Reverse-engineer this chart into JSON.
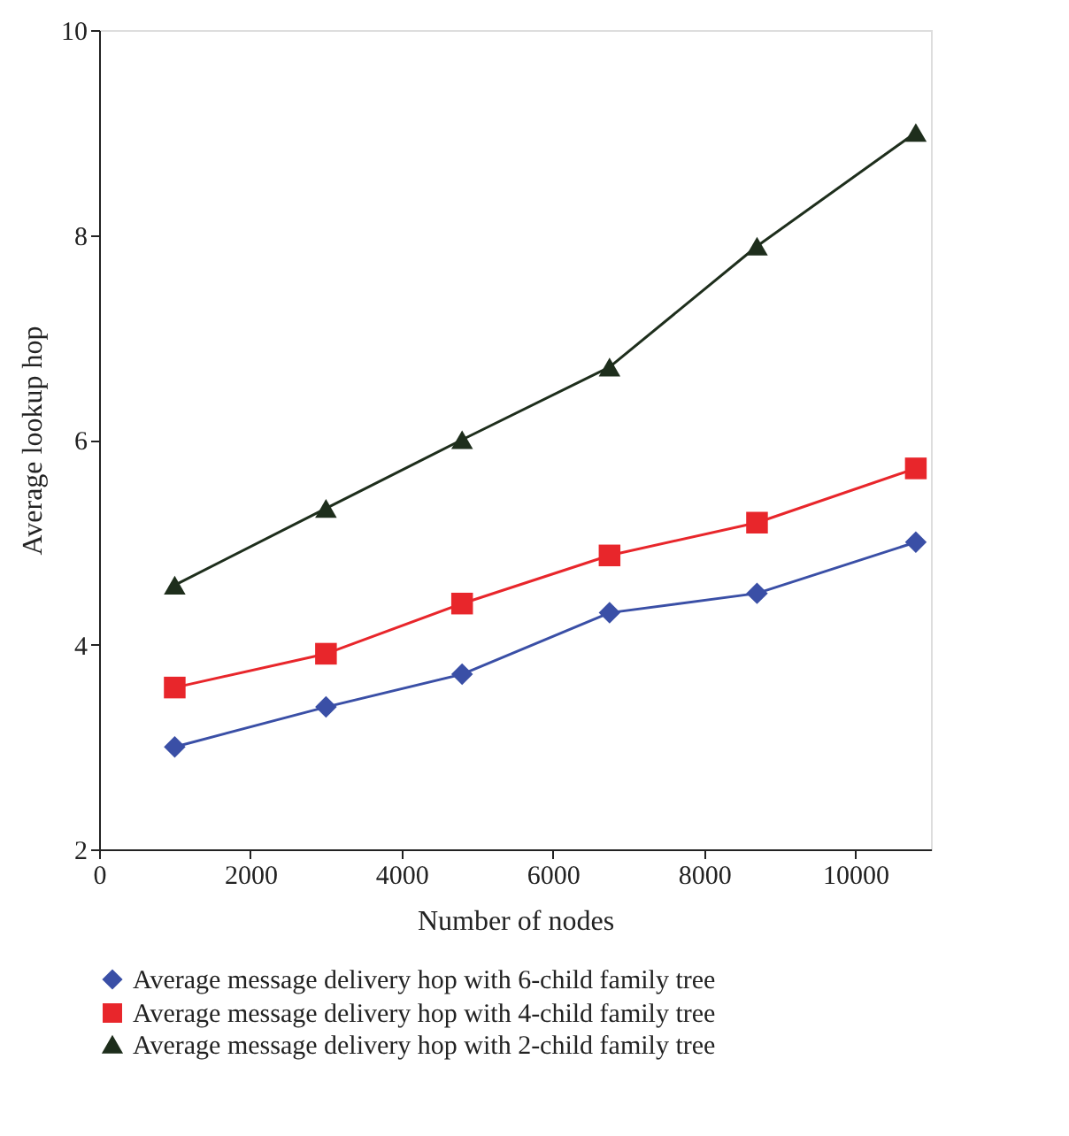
{
  "chart_data": {
    "type": "line",
    "xlabel": "Number of nodes",
    "ylabel": "Average lookup hop",
    "x": [
      1000,
      3000,
      4800,
      6750,
      8700,
      10800
    ],
    "xlim": [
      0,
      11000
    ],
    "xticks": [
      0,
      2000,
      4000,
      6000,
      8000,
      10000
    ],
    "ylim": [
      2,
      10
    ],
    "yticks": [
      2,
      4,
      6,
      8,
      10
    ],
    "grid": false,
    "legend": "bottom",
    "series": [
      {
        "name": "Average message delivery hop with 6-child family tree",
        "color": "#3a4fa6",
        "marker": "diamond",
        "values": [
          3.0,
          3.39,
          3.71,
          4.31,
          4.5,
          5.0
        ]
      },
      {
        "name": "Average message delivery hop with 4-child family tree",
        "color": "#e8262b",
        "marker": "square",
        "values": [
          3.58,
          3.91,
          4.4,
          4.87,
          5.19,
          5.72
        ]
      },
      {
        "name": "Average message delivery hop with 2-child family tree",
        "color": "#1e2e1c",
        "marker": "triangle",
        "values": [
          4.58,
          5.33,
          6.0,
          6.71,
          7.89,
          9.0
        ]
      }
    ]
  }
}
